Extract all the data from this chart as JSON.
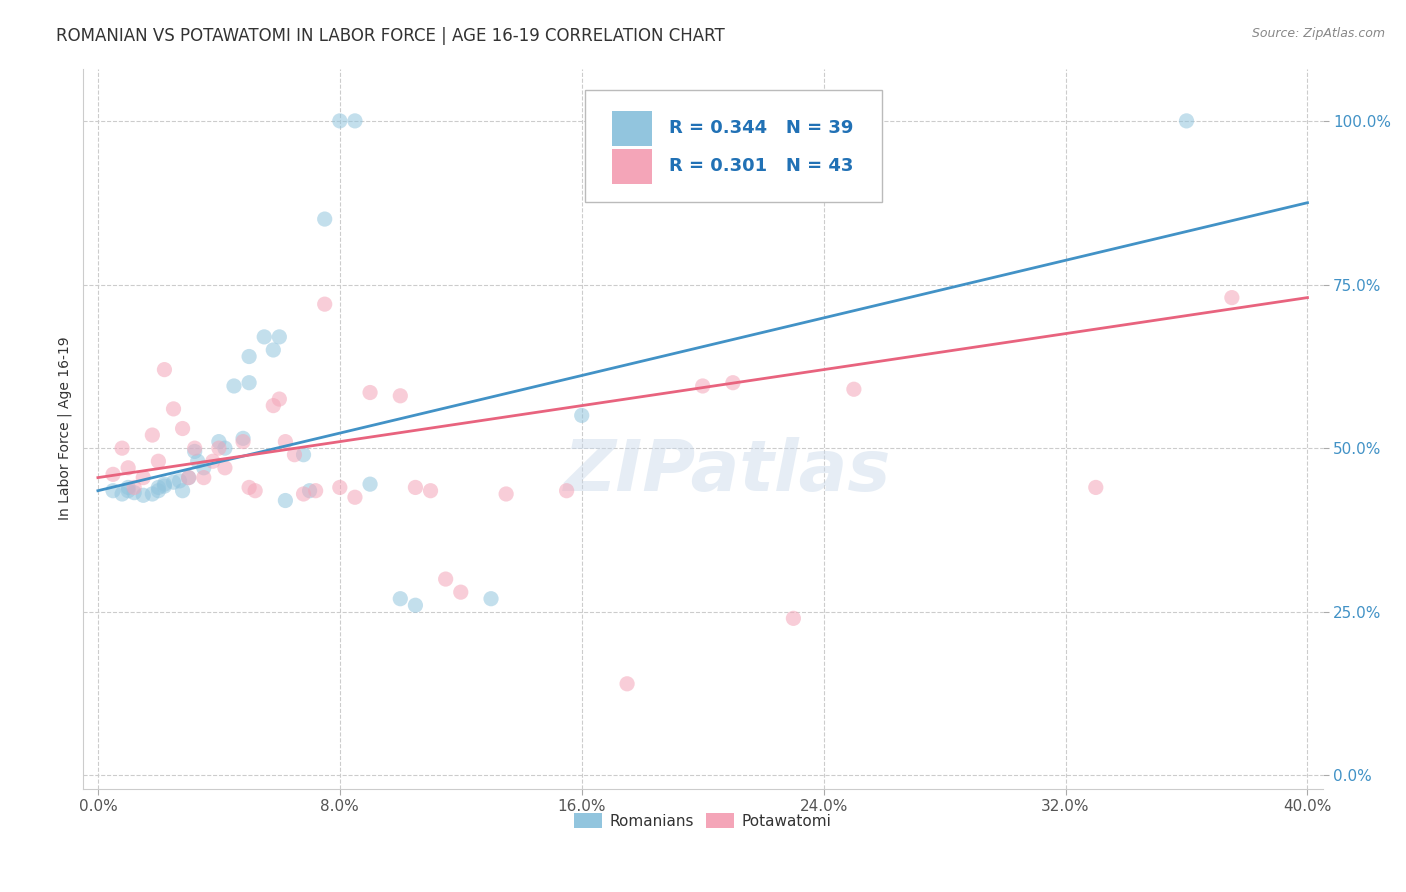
{
  "title": "ROMANIAN VS POTAWATOMI IN LABOR FORCE | AGE 16-19 CORRELATION CHART",
  "source": "Source: ZipAtlas.com",
  "ylabel_label": "In Labor Force | Age 16-19",
  "xlim": [
    -0.005,
    0.405
  ],
  "ylim": [
    -0.02,
    1.08
  ],
  "xticks": [
    0.0,
    0.08,
    0.16,
    0.24,
    0.32,
    0.4
  ],
  "xtick_labels": [
    "0.0%",
    "8.0%",
    "16.0%",
    "24.0%",
    "32.0%",
    "40.0%"
  ],
  "yticks": [
    0.0,
    0.25,
    0.5,
    0.75,
    1.0
  ],
  "ytick_labels": [
    "0.0%",
    "25.0%",
    "50.0%",
    "75.0%",
    "100.0%"
  ],
  "watermark": "ZIPatlas",
  "legend_r_blue": "R = 0.344",
  "legend_n_blue": "N = 39",
  "legend_r_pink": "R = 0.301",
  "legend_n_pink": "N = 43",
  "legend_label_blue": "Romanians",
  "legend_label_pink": "Potawatomi",
  "blue_color": "#92c5de",
  "pink_color": "#f4a5b8",
  "blue_line_color": "#4292c6",
  "pink_line_color": "#e8637e",
  "tick_color": "#4292c6",
  "legend_text_color": "#2171b5",
  "blue_scatter_x": [
    0.005,
    0.008,
    0.01,
    0.01,
    0.012,
    0.015,
    0.018,
    0.02,
    0.02,
    0.022,
    0.022,
    0.025,
    0.027,
    0.028,
    0.03,
    0.032,
    0.033,
    0.035,
    0.04,
    0.042,
    0.045,
    0.048,
    0.05,
    0.05,
    0.055,
    0.058,
    0.06,
    0.062,
    0.068,
    0.07,
    0.075,
    0.08,
    0.085,
    0.09,
    0.1,
    0.105,
    0.13,
    0.16,
    0.36
  ],
  "blue_scatter_y": [
    0.435,
    0.43,
    0.44,
    0.435,
    0.432,
    0.428,
    0.43,
    0.44,
    0.435,
    0.445,
    0.442,
    0.448,
    0.45,
    0.435,
    0.455,
    0.495,
    0.48,
    0.47,
    0.51,
    0.5,
    0.595,
    0.515,
    0.6,
    0.64,
    0.67,
    0.65,
    0.67,
    0.42,
    0.49,
    0.435,
    0.85,
    1.0,
    1.0,
    0.445,
    0.27,
    0.26,
    0.27,
    0.55,
    1.0
  ],
  "pink_scatter_x": [
    0.005,
    0.008,
    0.01,
    0.012,
    0.015,
    0.018,
    0.02,
    0.022,
    0.025,
    0.028,
    0.03,
    0.032,
    0.035,
    0.038,
    0.04,
    0.042,
    0.048,
    0.05,
    0.052,
    0.058,
    0.06,
    0.062,
    0.065,
    0.068,
    0.072,
    0.075,
    0.08,
    0.085,
    0.09,
    0.1,
    0.105,
    0.11,
    0.115,
    0.12,
    0.135,
    0.155,
    0.175,
    0.2,
    0.21,
    0.23,
    0.25,
    0.33,
    0.375
  ],
  "pink_scatter_y": [
    0.46,
    0.5,
    0.47,
    0.44,
    0.455,
    0.52,
    0.48,
    0.62,
    0.56,
    0.53,
    0.455,
    0.5,
    0.455,
    0.48,
    0.5,
    0.47,
    0.51,
    0.44,
    0.435,
    0.565,
    0.575,
    0.51,
    0.49,
    0.43,
    0.435,
    0.72,
    0.44,
    0.425,
    0.585,
    0.58,
    0.44,
    0.435,
    0.3,
    0.28,
    0.43,
    0.435,
    0.14,
    0.595,
    0.6,
    0.24,
    0.59,
    0.44,
    0.73
  ],
  "blue_line_x": [
    0.0,
    0.4
  ],
  "blue_line_y": [
    0.435,
    0.875
  ],
  "pink_line_x": [
    0.0,
    0.4
  ],
  "pink_line_y": [
    0.455,
    0.73
  ],
  "title_fontsize": 12,
  "axis_fontsize": 10,
  "tick_fontsize": 11,
  "scatter_size": 120,
  "scatter_alpha": 0.55,
  "grid_color": "#cccccc",
  "grid_style": "--"
}
